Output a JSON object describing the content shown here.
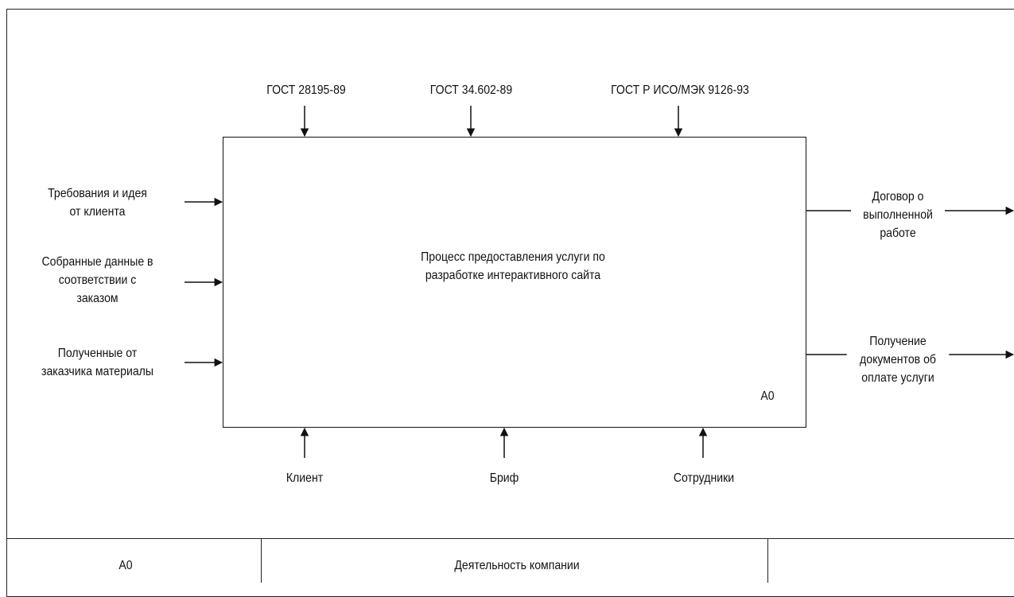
{
  "diagram": {
    "process": {
      "lines": [
        "Процесс предоставления услуги по",
        "разработке интерактивного сайта"
      ],
      "node_id": "A0"
    },
    "controls": [
      {
        "label": "ГОСТ 28195-89"
      },
      {
        "label": "ГОСТ 34.602-89"
      },
      {
        "label": "ГОСТ Р ИСО/МЭК 9126-93"
      }
    ],
    "inputs": [
      {
        "lines": [
          "Требования и идея",
          "от клиента"
        ]
      },
      {
        "lines": [
          "Собранные данные в",
          "соответствии с",
          "заказом"
        ]
      },
      {
        "lines": [
          "Полученные от",
          "заказчика материалы"
        ]
      }
    ],
    "outputs": [
      {
        "lines": [
          "Договор о",
          "выполненной",
          "работе"
        ]
      },
      {
        "lines": [
          "Получение",
          "документов об",
          "оплате услуги"
        ]
      }
    ],
    "mechanisms": [
      {
        "label": "Клиент"
      },
      {
        "label": "Бриф"
      },
      {
        "label": "Сотрудники"
      }
    ]
  },
  "footer": {
    "node": "A0",
    "title": "Деятельность компании",
    "number": ""
  }
}
